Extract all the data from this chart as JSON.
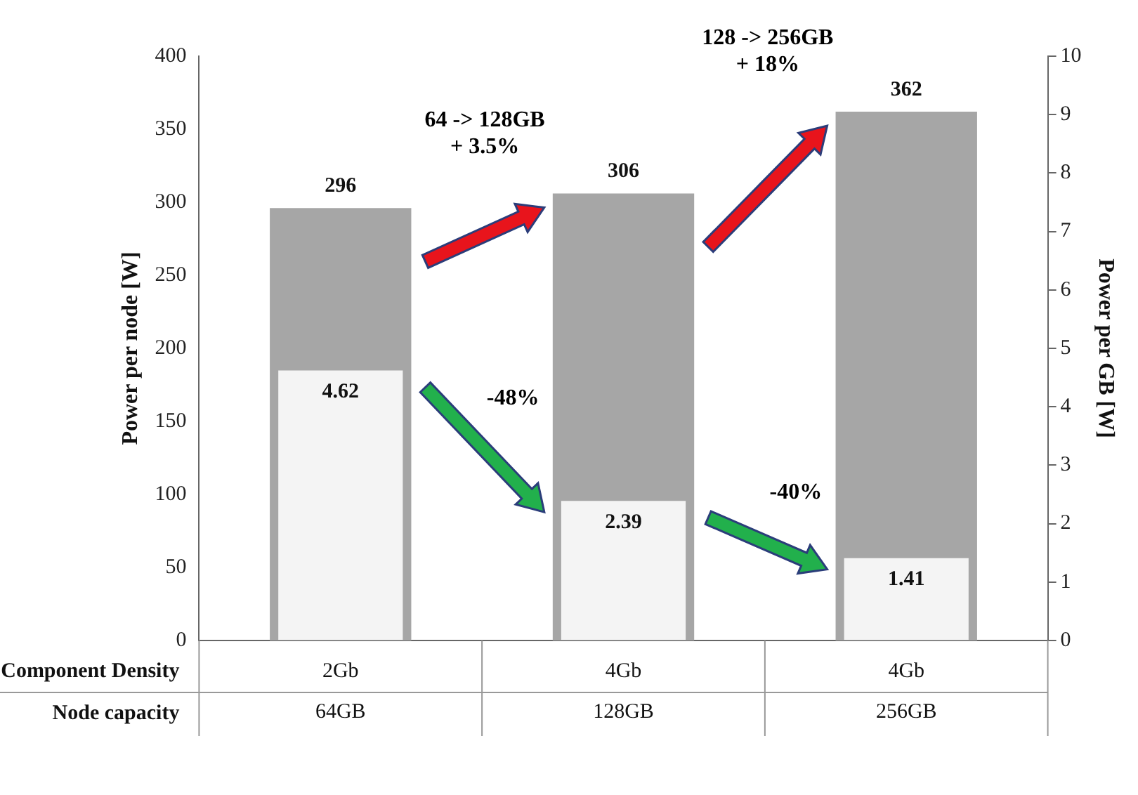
{
  "chart_data": {
    "type": "bar",
    "categories": [
      "64GB",
      "128GB",
      "256GB"
    ],
    "series": [
      {
        "color": "#a6a6a6",
        "values": [
          296,
          306,
          362
        ]
      },
      {
        "color": "#f4f4f4",
        "values": [
          4.62,
          2.39,
          1.41
        ],
        "axis": "y2"
      }
    ],
    "ylabel": "Power per node [W]",
    "y2label": "Power per GB [W]",
    "ylim": [
      0,
      400
    ],
    "yticks": [
      0,
      50,
      100,
      150,
      200,
      250,
      300,
      350,
      400
    ],
    "y2lim": [
      0,
      10
    ],
    "y2ticks": [
      0,
      1,
      2,
      3,
      4,
      5,
      6,
      7,
      8,
      9,
      10
    ],
    "data_labels": true,
    "legend": false,
    "grid": false,
    "annotations": [
      "64 -> 128GB\n+ 3.5%",
      "128 -> 256GB\n+ 18%",
      "-48%",
      "-40%",
      "Component Density",
      "Node capacity",
      "2Gb",
      "4Gb",
      "4Gb"
    ]
  }
}
